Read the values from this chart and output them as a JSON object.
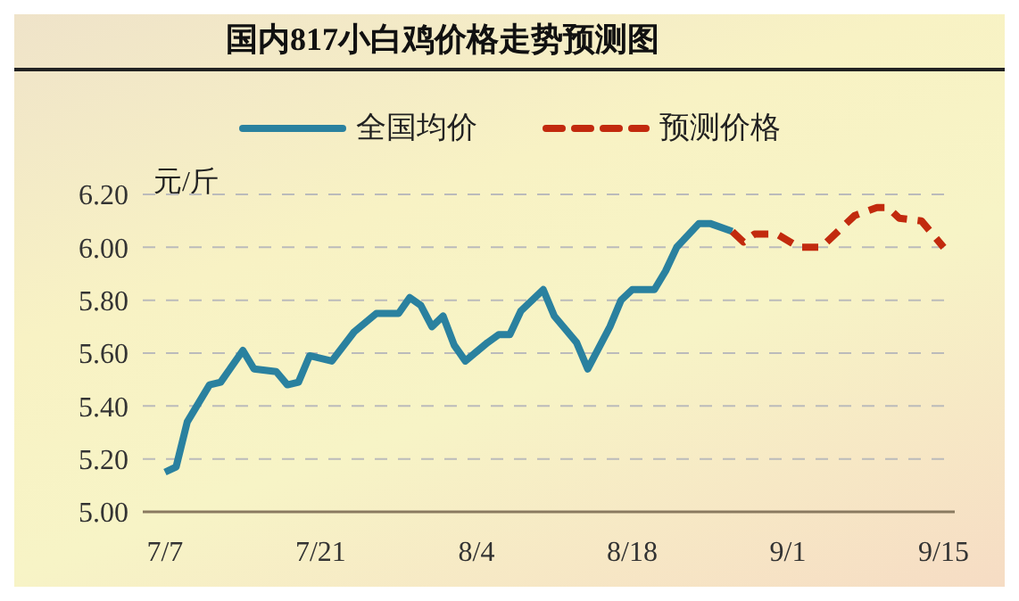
{
  "chart_data": {
    "type": "line",
    "title": "国内817小白鸡价格走势预测图",
    "ylabel": "元/斤",
    "xlim": [
      "--07-05",
      "--09-16"
    ],
    "xticks": [
      {
        "value": "--07-07",
        "label": "7/7"
      },
      {
        "value": "--07-21",
        "label": "7/21"
      },
      {
        "value": "--08-04",
        "label": "8/4"
      },
      {
        "value": "--08-18",
        "label": "8/18"
      },
      {
        "value": "--09-01",
        "label": "9/1"
      },
      {
        "value": "--09-15",
        "label": "9/15"
      }
    ],
    "ylim": [
      5.0,
      6.2
    ],
    "yticks": [
      {
        "value": 5.0,
        "label": "5.00"
      },
      {
        "value": 5.2,
        "label": "5.20"
      },
      {
        "value": 5.4,
        "label": "5.40"
      },
      {
        "value": 5.6,
        "label": "5.60"
      },
      {
        "value": 5.8,
        "label": "5.80"
      },
      {
        "value": 6.0,
        "label": "6.00"
      },
      {
        "value": 6.2,
        "label": "6.20"
      }
    ],
    "grid": "y",
    "legend": "top",
    "marker": "none",
    "series": [
      {
        "name": "全国均价",
        "color": "#2a819f",
        "line_style": "solid",
        "x": [
          "--07-07",
          "--07-08",
          "--07-09",
          "--07-11",
          "--07-12",
          "--07-14",
          "--07-15",
          "--07-17",
          "--07-18",
          "--07-19",
          "--07-20",
          "--07-22",
          "--07-24",
          "--07-26",
          "--07-28",
          "--07-29",
          "--07-30",
          "--07-31",
          "--08-01",
          "--08-02",
          "--08-03",
          "--08-05",
          "--08-06",
          "--08-07",
          "--08-08",
          "--08-10",
          "--08-11",
          "--08-12",
          "--08-13",
          "--08-14",
          "--08-16",
          "--08-17",
          "--08-18",
          "--08-20",
          "--08-21",
          "--08-22",
          "--08-24",
          "--08-25",
          "--08-27"
        ],
        "values": [
          5.15,
          5.17,
          5.34,
          5.48,
          5.49,
          5.61,
          5.54,
          5.53,
          5.48,
          5.49,
          5.59,
          5.57,
          5.68,
          5.75,
          5.75,
          5.81,
          5.78,
          5.7,
          5.74,
          5.63,
          5.57,
          5.64,
          5.67,
          5.67,
          5.76,
          5.84,
          5.74,
          5.69,
          5.64,
          5.54,
          5.7,
          5.8,
          5.84,
          5.84,
          5.91,
          6.0,
          6.09,
          6.09,
          6.06
        ]
      },
      {
        "name": "预测价格",
        "color": "#c22a0e",
        "line_style": "dashed",
        "x": [
          "--08-27",
          "--08-28",
          "--08-29",
          "--08-31",
          "--09-02",
          "--09-04",
          "--09-06",
          "--09-07",
          "--09-09",
          "--09-10",
          "--09-11",
          "--09-13",
          "--09-15"
        ],
        "values": [
          6.06,
          6.02,
          6.05,
          6.05,
          6.0,
          6.0,
          6.08,
          6.12,
          6.15,
          6.15,
          6.11,
          6.1,
          6.0
        ]
      }
    ]
  }
}
